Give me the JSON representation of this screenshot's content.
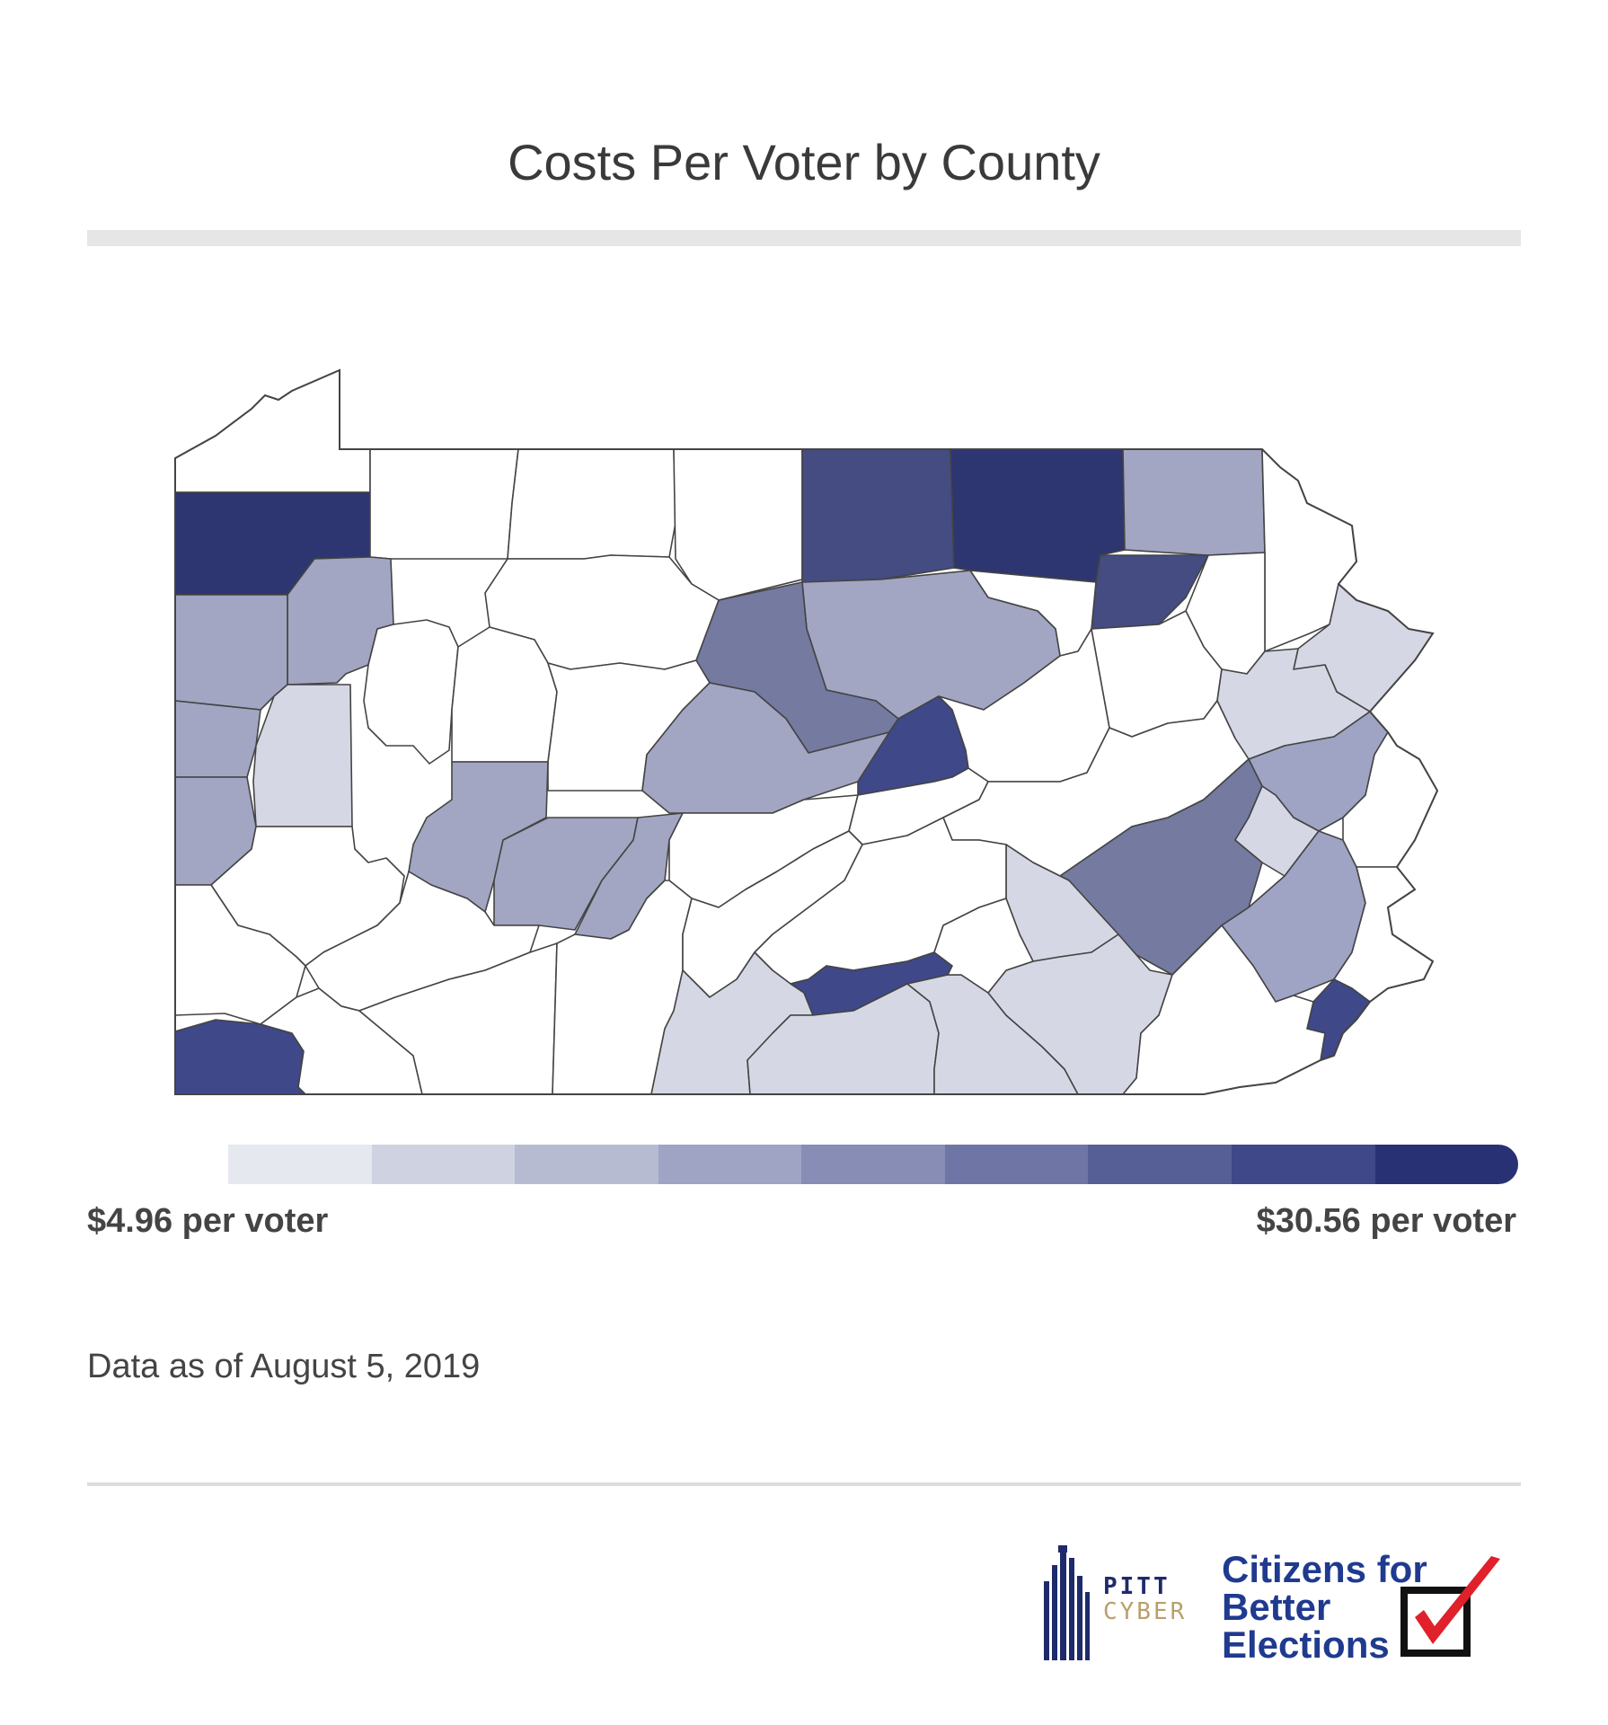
{
  "header": {
    "title": "Costs Per Voter by County"
  },
  "legend": {
    "min_label": "$4.96 per voter",
    "max_label": "$30.56 per voter",
    "min_value": 4.96,
    "max_value": 30.56,
    "steps": [
      "#e6e8ef",
      "#cfd2e0",
      "#b7bbd2",
      "#9fa4c4",
      "#878db5",
      "#6f76a6",
      "#575f97",
      "#3f4888",
      "#283173"
    ]
  },
  "footer": {
    "date_label": "Data as of August 5, 2019"
  },
  "logos": {
    "pitt_line1": "PITT",
    "pitt_line2": "CYBER",
    "cbe_line1": "Citizens for",
    "cbe_line2": "Better",
    "cbe_line3": "Elections"
  },
  "colors": {
    "outline": "#444444",
    "white": "#ffffff",
    "check_red": "#e0202a",
    "brand_blue": "#1f3a8f"
  }
}
